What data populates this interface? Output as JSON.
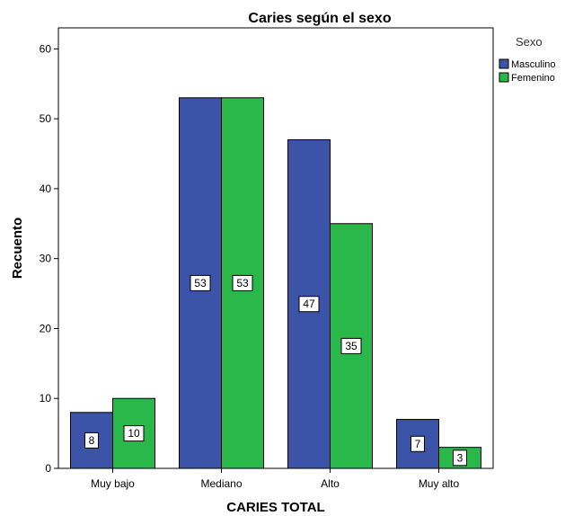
{
  "chart_data": {
    "type": "bar",
    "title": "Caries según el sexo",
    "xlabel": "CARIES TOTAL",
    "ylabel": "Recuento",
    "categories": [
      "Muy bajo",
      "Mediano",
      "Alto",
      "Muy alto"
    ],
    "series": [
      {
        "name": "Masculino",
        "values": [
          8,
          53,
          47,
          7
        ],
        "color": "#3b54a8"
      },
      {
        "name": "Femenino",
        "values": [
          10,
          53,
          35,
          3
        ],
        "color": "#2bb84a"
      }
    ],
    "ylim": [
      0,
      63
    ],
    "yticks": [
      0,
      10,
      20,
      30,
      40,
      50,
      60
    ],
    "legend": {
      "title": "Sexo",
      "placement": "right"
    },
    "grid": false,
    "data_labels": true
  }
}
